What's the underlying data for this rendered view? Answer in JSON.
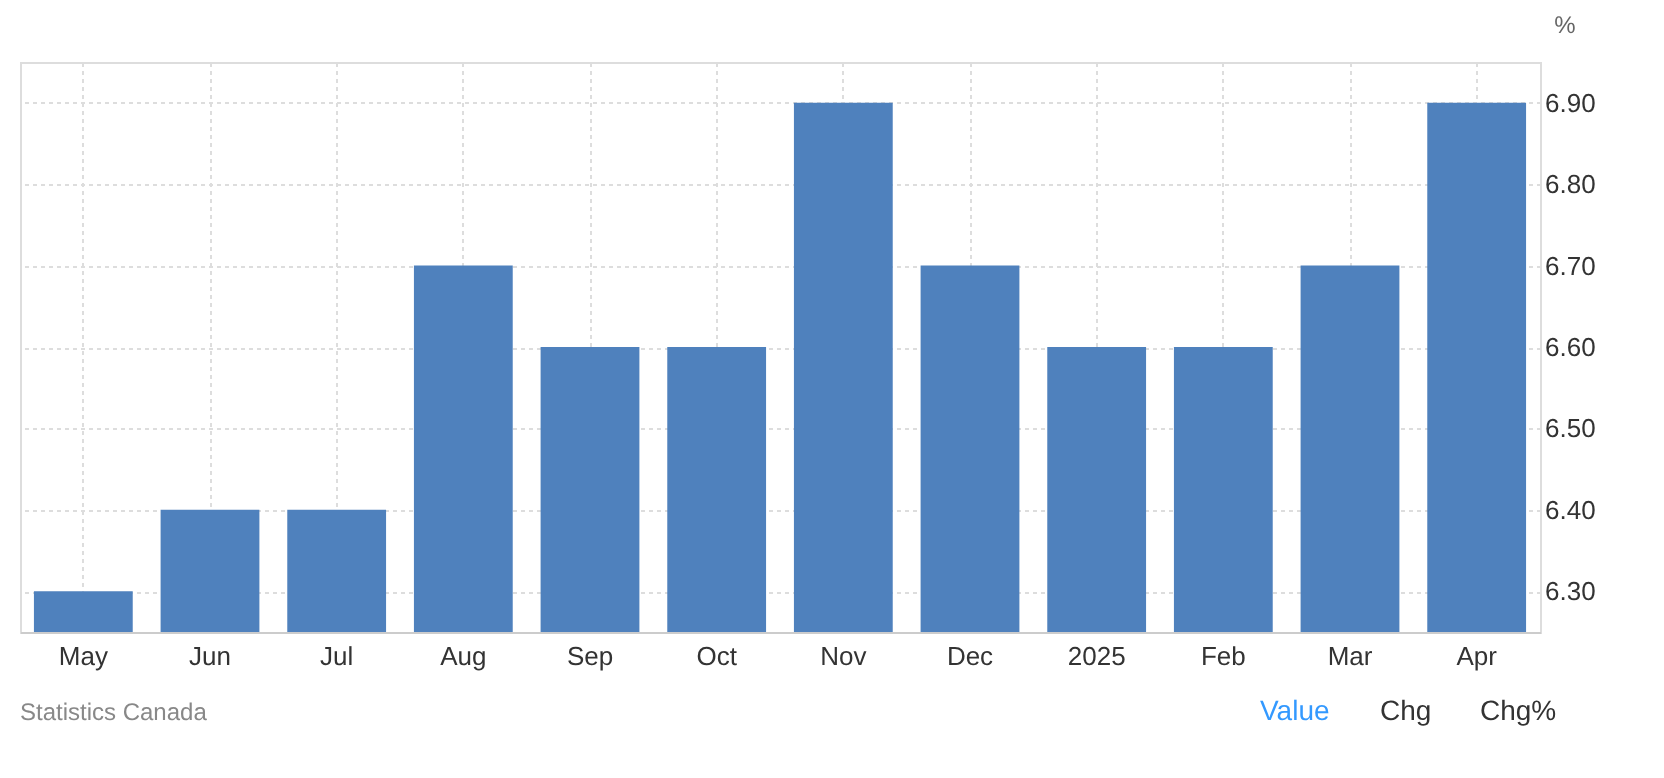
{
  "chart_data": {
    "type": "bar",
    "ylabel": "%",
    "categories": [
      "May",
      "Jun",
      "Jul",
      "Aug",
      "Sep",
      "Oct",
      "Nov",
      "Dec",
      "2025",
      "Feb",
      "Mar",
      "Apr"
    ],
    "values": [
      6.3,
      6.4,
      6.4,
      6.7,
      6.6,
      6.6,
      6.9,
      6.7,
      6.6,
      6.6,
      6.7,
      6.9
    ],
    "color": "#4f81bd",
    "ylim": [
      6.25,
      6.95
    ],
    "yticks": [
      {
        "value": 6.3,
        "label": "6.30"
      },
      {
        "value": 6.4,
        "label": "6.40"
      },
      {
        "value": 6.5,
        "label": "6.50"
      },
      {
        "value": 6.6,
        "label": "6.60"
      },
      {
        "value": 6.7,
        "label": "6.70"
      },
      {
        "value": 6.8,
        "label": "6.80"
      },
      {
        "value": 6.9,
        "label": "6.90"
      }
    ],
    "grid": true,
    "annotations": [
      "Statistics Canada",
      "Value",
      "Chg",
      "Chg%"
    ]
  }
}
